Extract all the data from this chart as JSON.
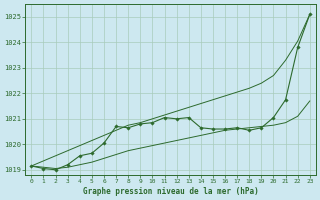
{
  "bg_color": "#cde8f0",
  "grid_color": "#a8ccbb",
  "line_color": "#2d6a2d",
  "x": [
    0,
    1,
    2,
    3,
    4,
    5,
    6,
    7,
    8,
    9,
    10,
    11,
    12,
    13,
    14,
    15,
    16,
    17,
    18,
    19,
    20,
    21,
    22,
    23
  ],
  "line_measured": [
    1019.15,
    1019.05,
    1019.0,
    1019.2,
    1019.55,
    1019.65,
    1020.05,
    1020.7,
    1020.65,
    1020.8,
    1020.85,
    1021.05,
    1021.0,
    1021.05,
    1020.65,
    1020.6,
    1020.6,
    1020.65,
    1020.55,
    1020.65,
    1021.05,
    1021.75,
    1023.8,
    1025.1
  ],
  "line_upper": [
    1019.15,
    1019.35,
    1019.55,
    1019.75,
    1019.95,
    1020.15,
    1020.35,
    1020.55,
    1020.75,
    1020.85,
    1021.0,
    1021.15,
    1021.3,
    1021.45,
    1021.6,
    1021.75,
    1021.9,
    1022.05,
    1022.2,
    1022.4,
    1022.7,
    1023.3,
    1024.05,
    1025.1
  ],
  "line_lower": [
    1019.15,
    1019.1,
    1019.05,
    1019.1,
    1019.2,
    1019.3,
    1019.45,
    1019.6,
    1019.75,
    1019.85,
    1019.95,
    1020.05,
    1020.15,
    1020.25,
    1020.35,
    1020.45,
    1020.55,
    1020.6,
    1020.65,
    1020.7,
    1020.75,
    1020.85,
    1021.1,
    1021.7
  ],
  "ylim": [
    1018.8,
    1025.5
  ],
  "yticks": [
    1019,
    1020,
    1021,
    1022,
    1023,
    1024,
    1025
  ],
  "xlim": [
    -0.5,
    23.5
  ],
  "xticks": [
    0,
    1,
    2,
    3,
    4,
    5,
    6,
    7,
    8,
    9,
    10,
    11,
    12,
    13,
    14,
    15,
    16,
    17,
    18,
    19,
    20,
    21,
    22,
    23
  ],
  "xlabel": "Graphe pression niveau de la mer (hPa)"
}
